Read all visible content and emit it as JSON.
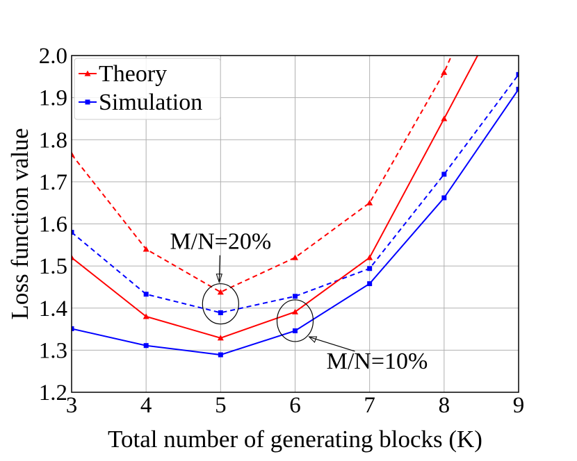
{
  "chart_data": {
    "type": "line",
    "xlabel": "Total number of generating blocks (K)",
    "ylabel": "Loss function value",
    "xlim": [
      3,
      9
    ],
    "ylim": [
      1.2,
      2.0
    ],
    "xticks": [
      "3",
      "4",
      "5",
      "6",
      "7",
      "8",
      "9"
    ],
    "yticks": [
      "1.2",
      "1.3",
      "1.4",
      "1.5",
      "1.6",
      "1.7",
      "1.8",
      "1.9",
      "2.0"
    ],
    "grid": true,
    "legend": {
      "position": "top-left",
      "entries": [
        "Theory",
        "Simulation"
      ]
    },
    "colors": {
      "theory": "#ff0000",
      "simulation": "#0000ff"
    },
    "series": [
      {
        "name": "Theory",
        "group": "M/N=20%",
        "style": "dashed",
        "color": "#ff0000",
        "marker": "triangle",
        "x": [
          3,
          4,
          5,
          6,
          7,
          8,
          8.1
        ],
        "values": [
          1.765,
          1.54,
          1.438,
          1.52,
          1.65,
          1.96,
          2.0
        ]
      },
      {
        "name": "Simulation",
        "group": "M/N=20%",
        "style": "dashed",
        "color": "#0000ff",
        "marker": "square",
        "x": [
          3,
          4,
          5,
          6,
          7,
          8,
          9
        ],
        "values": [
          1.58,
          1.433,
          1.389,
          1.428,
          1.494,
          1.718,
          1.955
        ]
      },
      {
        "name": "Theory",
        "group": "M/N=10%",
        "style": "solid",
        "color": "#ff0000",
        "marker": "triangle",
        "x": [
          3,
          4,
          5,
          6,
          7,
          8,
          8.45
        ],
        "values": [
          1.52,
          1.38,
          1.329,
          1.391,
          1.52,
          1.85,
          2.0
        ]
      },
      {
        "name": "Simulation",
        "group": "M/N=10%",
        "style": "solid",
        "color": "#0000ff",
        "marker": "square",
        "x": [
          3,
          4,
          5,
          6,
          7,
          8,
          9
        ],
        "values": [
          1.351,
          1.311,
          1.289,
          1.346,
          1.458,
          1.662,
          1.92
        ]
      }
    ],
    "annotations": [
      {
        "text": "M/N=20%",
        "target_x": 5,
        "target_y": 1.41
      },
      {
        "text": "M/N=10%",
        "target_x": 6,
        "target_y": 1.37
      }
    ]
  }
}
